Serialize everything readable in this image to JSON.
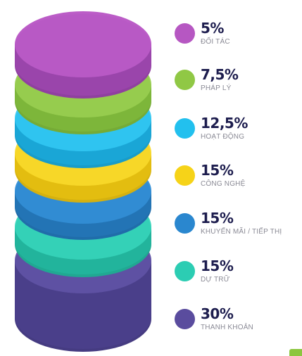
{
  "chart_data": {
    "type": "stacked-cylinder",
    "segments": [
      {
        "value_label": "5%",
        "value": 5,
        "label": "ĐỐI TÁC",
        "color": "#b657c2",
        "side_color": "#9a45ab",
        "top_color": "#bb5cc7"
      },
      {
        "value_label": "7,5%",
        "value": 7.5,
        "label": "PHÁP LÝ",
        "color": "#90c845",
        "side_color": "#7db63a",
        "top_color": "#9ed05a"
      },
      {
        "value_label": "12,5%",
        "value": 12.5,
        "label": "HOẠT ĐỘNG",
        "color": "#22c0ee",
        "side_color": "#1aa6d6",
        "top_color": "#3fcaf2"
      },
      {
        "value_label": "15%",
        "value": 15,
        "label": "CÔNG NGHỆ",
        "color": "#f6d318",
        "side_color": "#e3bd10",
        "top_color": "#f8dc3c"
      },
      {
        "value_label": "15%",
        "value": 15,
        "label": "KHUYẾN MÃI / TIẾP THỊ",
        "color": "#2a87cf",
        "side_color": "#2374b5",
        "top_color": "#3a93d8"
      },
      {
        "value_label": "15%",
        "value": 15,
        "label": "DỰ TRỮ",
        "color": "#2ccdb3",
        "side_color": "#22b49c",
        "top_color": "#3fd6bd"
      },
      {
        "value_label": "30%",
        "value": 30,
        "label": "THANH KHOẢN",
        "color": "#5a4c9e",
        "side_color": "#4a3f8a",
        "top_color": "#6558a8"
      }
    ]
  }
}
